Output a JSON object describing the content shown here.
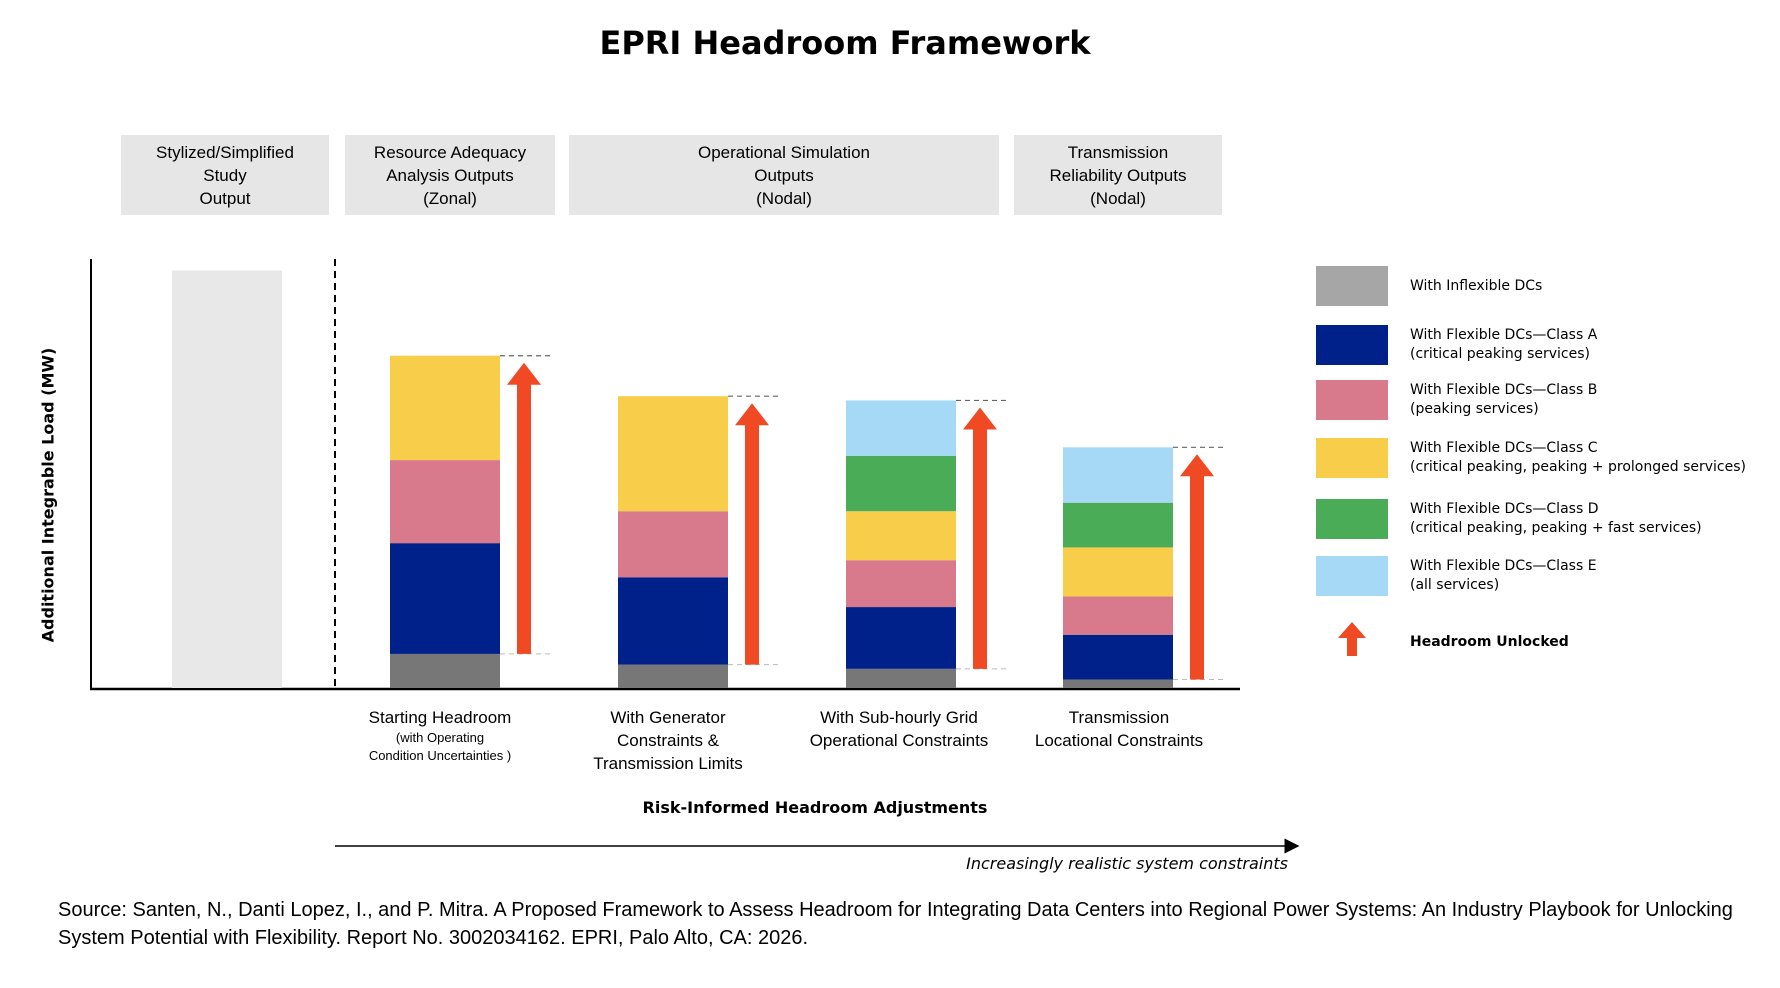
{
  "title": "EPRI Headroom Framework",
  "header_boxes": [
    {
      "lines": [
        "Stylized/Simplified",
        "Study",
        "Output"
      ]
    },
    {
      "lines": [
        "Resource Adequacy",
        "Analysis Outputs",
        "(Zonal)"
      ]
    },
    {
      "lines": [
        "Operational Simulation",
        "Outputs",
        "(Nodal)"
      ]
    },
    {
      "lines": [
        "Transmission",
        "Reliability Outputs",
        "(Nodal)"
      ]
    }
  ],
  "chart_data": {
    "type": "bar",
    "stacked": true,
    "title": "EPRI Headroom Framework",
    "ylabel": "Additional Integrable Load (MW)",
    "xlabel": "Risk-Informed Headroom Adjustments",
    "ylim": [
      0,
      100
    ],
    "grid": false,
    "legend_position": "right",
    "categories": [
      {
        "lines": [
          "Starting Headroom"
        ],
        "sublines": [
          "(with Operating",
          "Condition Uncertainties )"
        ]
      },
      {
        "lines": [
          "With Generator",
          "Constraints &",
          "Transmission Limits"
        ],
        "sublines": []
      },
      {
        "lines": [
          "With Sub-hourly Grid",
          "Operational Constraints"
        ],
        "sublines": []
      },
      {
        "lines": [
          "Transmission",
          "Locational Constraints"
        ],
        "sublines": []
      }
    ],
    "reference_bar": {
      "label": "Stylized/Simplified Study Output",
      "value": 98,
      "color": "#e8e8e8"
    },
    "series": [
      {
        "name": "With Inflexible DCs",
        "color": "#777777",
        "values": [
          8,
          5.5,
          4.5,
          2
        ]
      },
      {
        "name": "With Flexible DCs—Class A",
        "color": "#00218a",
        "values": [
          26,
          20.5,
          14.5,
          10.5
        ]
      },
      {
        "name": "With Flexible DCs—Class B",
        "color": "#d87a8c",
        "values": [
          19.5,
          15.5,
          11,
          9
        ]
      },
      {
        "name": "With Flexible DCs—Class C",
        "color": "#f8cd49",
        "values": [
          24.5,
          27,
          11.5,
          11.5
        ]
      },
      {
        "name": "With Flexible DCs—Class D",
        "color": "#4aac56",
        "values": [
          0,
          0,
          13,
          10.5
        ]
      },
      {
        "name": "With Flexible DCs—Class E",
        "color": "#a6d9f5",
        "values": [
          0,
          0,
          13,
          13
        ]
      }
    ],
    "annotation": "Increasingly realistic system constraints",
    "arrow_color": "#ef4a24"
  },
  "legend": [
    {
      "key": "inflexible",
      "label": "With Inflexible DCs",
      "sub": "",
      "color": "#a6a6a6"
    },
    {
      "key": "a",
      "label": "With Flexible DCs—Class A",
      "sub": "(critical peaking services)",
      "color": "#00218a"
    },
    {
      "key": "b",
      "label": "With Flexible DCs—Class B",
      "sub": "(peaking services)",
      "color": "#d87a8c"
    },
    {
      "key": "c",
      "label": "With Flexible DCs—Class C",
      "sub": "(critical peaking, peaking + prolonged services)",
      "color": "#f8cd49"
    },
    {
      "key": "d",
      "label": "With Flexible DCs—Class D",
      "sub": "(critical peaking, peaking + fast services)",
      "color": "#4aac56"
    },
    {
      "key": "e",
      "label": "With Flexible DCs—Class E",
      "sub": "(all services)",
      "color": "#a6d9f5"
    }
  ],
  "legend_arrow_label": "Headroom Unlocked",
  "source": "Source: Santen, N., Danti Lopez, I., and P. Mitra. A Proposed Framework to Assess Headroom for Integrating Data Centers into Regional Power Systems: An Industry Playbook for Unlocking System Potential with Flexibility. Report No. 3002034162. EPRI, Palo Alto, CA: 2026."
}
